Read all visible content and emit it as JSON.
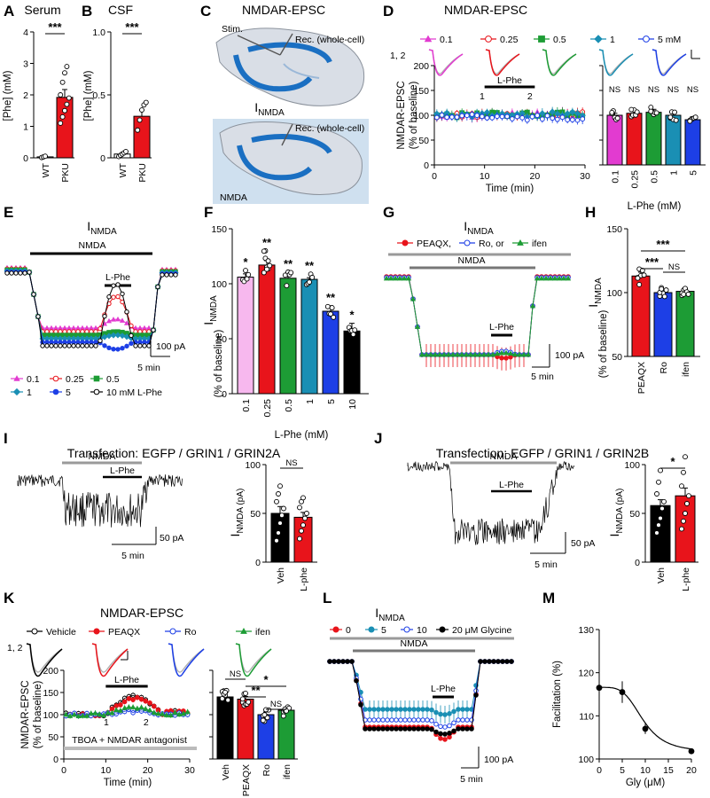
{
  "colors": {
    "pink": "#e23bd0",
    "red": "#e8141b",
    "green": "#1d9c35",
    "teal": "#1a8fb4",
    "blue": "#1d3fe6",
    "black": "#000000",
    "gray": "#9a9a9a",
    "light_blue": "#cfe0ef",
    "tissue": "#d9dee6"
  },
  "panels": {
    "A": {
      "letter": "A",
      "title": "Serum"
    },
    "B": {
      "letter": "B",
      "title": "CSF"
    },
    "C": {
      "letter": "C",
      "title": "NMDAR-EPSC",
      "stim": "Stim.",
      "rec1": "Rec. (whole-cell)",
      "inmda_main": "I",
      "inmda_sub": "NMDA",
      "rec2": "Rec. (whole-cell)",
      "nmda_label": "NMDA"
    },
    "D": {
      "letter": "D",
      "title": "NMDAR-EPSC",
      "trace_index": "1, 2",
      "idx1": "1",
      "idx2": "2",
      "bar_label": "L-Phe"
    },
    "E": {
      "letter": "E",
      "title_main": "I",
      "title_sub": "NMDA",
      "nmda_label": "NMDA",
      "lphe_label": "L-Phe",
      "scale_y": "100 pA",
      "scale_x": "5 min"
    },
    "F": {
      "letter": "F"
    },
    "G": {
      "letter": "G",
      "title_main": "I",
      "title_sub": "NMDA",
      "nmda_label": "NMDA",
      "lphe_label": "L-Phe",
      "scale_y": "100 pA",
      "scale_x": "5 min"
    },
    "H": {
      "letter": "H"
    },
    "I": {
      "letter": "I",
      "title": "Transfection: EGFP / GRIN1 / GRIN2A",
      "nmda_label": "NMDA",
      "lphe_label": "L-Phe",
      "scale_y": "50 pA",
      "scale_x": "5 min"
    },
    "J": {
      "letter": "J",
      "title": "Transfection: EGFP / GRIN1 / GRIN2B",
      "nmda_label": "NMDA",
      "lphe_label": "L-Phe",
      "scale_y": "50 pA",
      "scale_x": "5 min"
    },
    "K": {
      "letter": "K",
      "title": "NMDAR-EPSC",
      "trace_index": "1, 2",
      "idx1": "1",
      "idx2": "2",
      "bar_label": "L-Phe",
      "footer": "TBOA + NMDAR antagonist"
    },
    "L": {
      "letter": "L",
      "title_main": "I",
      "title_sub": "NMDA",
      "nmda_label": "NMDA",
      "lphe_label": "L-Phe",
      "scale_y": "100 pA",
      "scale_x": "5 min"
    },
    "M": {
      "letter": "M"
    }
  },
  "legends": {
    "D": [
      "0.1",
      "0.25",
      "0.5",
      "1",
      "5 mM"
    ],
    "E": [
      "0.1",
      "0.25",
      "0.5",
      "1",
      "5",
      "10 mM L-Phe"
    ],
    "G": [
      "PEAQX,",
      "Ro, or",
      "ifen"
    ],
    "K": [
      "Vehicle",
      "PEAQX",
      "Ro",
      "ifen"
    ],
    "L": [
      "0",
      "5",
      "10",
      "20 μM Glycine"
    ]
  },
  "chart_data": [
    {
      "panel": "A",
      "type": "bar",
      "title": "Serum",
      "ylabel": "[Phe] (mM)",
      "ylim": [
        0,
        4
      ],
      "yticks": [
        "0",
        "1",
        "2",
        "3",
        "4"
      ],
      "categories": [
        "WT",
        "PKU"
      ],
      "values": [
        0.03,
        1.92
      ],
      "errors": [
        0.01,
        0.25
      ],
      "points": [
        [
          0.01,
          0.03,
          0.05
        ],
        [
          1.1,
          1.3,
          1.5,
          1.7,
          1.9,
          2.0,
          2.4,
          2.7,
          2.9
        ]
      ],
      "significance": "***"
    },
    {
      "panel": "B",
      "type": "bar",
      "title": "CSF",
      "ylabel": "[Phe] (mM)",
      "ylim": [
        0,
        1.0
      ],
      "yticks": [
        "0",
        "0.5",
        "1.0"
      ],
      "categories": [
        "WT",
        "PKU"
      ],
      "values": [
        0.03,
        0.33
      ],
      "errors": [
        0.01,
        0.05
      ],
      "points": [
        [
          0.01,
          0.02,
          0.03,
          0.04,
          0.05
        ],
        [
          0.22,
          0.3,
          0.38,
          0.42,
          0.44
        ]
      ],
      "significance": "***"
    },
    {
      "panel": "D-time",
      "type": "line",
      "ylabel": "NMDAR-EPSC (% of baseline)",
      "xlabel": "Time (min)",
      "xlim": [
        0,
        30
      ],
      "ylim": [
        0,
        200
      ],
      "xticks": [
        "0",
        "10",
        "20",
        "30"
      ],
      "yticks": [
        "0",
        "50",
        "100",
        "150",
        "200"
      ],
      "series": [
        "0.1",
        "0.25",
        "0.5",
        "1",
        "5 mM"
      ],
      "baseline": 100
    },
    {
      "panel": "D-bar",
      "type": "bar",
      "xlabel": "L-Phe (mM)",
      "ylim": [
        0,
        200
      ],
      "categories": [
        "0.1",
        "0.25",
        "0.5",
        "1",
        "5"
      ],
      "values": [
        100,
        104,
        106,
        100,
        91
      ],
      "errors": [
        4,
        5,
        6,
        5,
        6
      ],
      "significance": [
        "NS",
        "NS",
        "NS",
        "NS",
        "NS"
      ]
    },
    {
      "panel": "F",
      "type": "bar",
      "ylabel": "I_NMDA (% of baseline)",
      "xlabel": "L-Phe (mM)",
      "ylim": [
        0,
        150
      ],
      "yticks": [
        "0",
        "50",
        "100",
        "150"
      ],
      "categories": [
        "0.1",
        "0.25",
        "0.5",
        "1",
        "5",
        "10"
      ],
      "values": [
        106,
        117,
        105,
        104,
        75,
        57
      ],
      "errors": [
        3,
        4,
        1.5,
        1.5,
        5,
        7
      ],
      "significance": [
        "*",
        "**",
        "**",
        "**",
        "**",
        "*"
      ]
    },
    {
      "panel": "H",
      "type": "bar",
      "ylabel": "I_NMDA (% of baseline)",
      "ylim": [
        50,
        150
      ],
      "yticks": [
        "50",
        "100",
        "150"
      ],
      "categories": [
        "PEAQX",
        "Ro",
        "ifen"
      ],
      "values": [
        113,
        100,
        101
      ],
      "errors": [
        3,
        1.5,
        2
      ],
      "significance": [
        "***",
        "***",
        "NS"
      ]
    },
    {
      "panel": "I-bar",
      "type": "bar",
      "ylabel": "I_NMDA (pA)",
      "ylim": [
        0,
        100
      ],
      "yticks": [
        "0",
        "50",
        "100"
      ],
      "categories": [
        "Veh",
        "L-phe"
      ],
      "values": [
        50,
        46
      ],
      "errors": [
        7,
        5
      ],
      "significance": "NS"
    },
    {
      "panel": "J-bar",
      "type": "bar",
      "ylabel": "I_NMDA (pA)",
      "ylim": [
        0,
        100
      ],
      "yticks": [
        "0",
        "50",
        "100"
      ],
      "categories": [
        "Veh",
        "L-phe"
      ],
      "values": [
        58,
        68
      ],
      "errors": [
        6,
        8
      ],
      "significance": "*"
    },
    {
      "panel": "K-time",
      "type": "line",
      "ylabel": "NMDAR-EPSC (% of baseline)",
      "xlabel": "Time (min)",
      "xlim": [
        0,
        30
      ],
      "ylim": [
        0,
        200
      ],
      "xticks": [
        "0",
        "10",
        "20",
        "30"
      ],
      "yticks": [
        "0",
        "50",
        "100",
        "150",
        "200"
      ],
      "series": [
        "Vehicle",
        "PEAQX",
        "Ro",
        "ifen"
      ]
    },
    {
      "panel": "K-bar",
      "type": "bar",
      "ylim": [
        0,
        200
      ],
      "categories": [
        "Veh",
        "PEAQX",
        "Ro",
        "ifen"
      ],
      "values": [
        140,
        135,
        100,
        110
      ],
      "errors": [
        8,
        6,
        6,
        6
      ],
      "significance": [
        "NS",
        "**",
        "*",
        "NS"
      ]
    },
    {
      "panel": "M",
      "type": "line",
      "ylabel": "Facilitation (%)",
      "xlabel": "Gly (μM)",
      "xlim": [
        0,
        20
      ],
      "ylim": [
        100,
        130
      ],
      "xticks": [
        "0",
        "5",
        "10",
        "15",
        "20"
      ],
      "yticks": [
        "100",
        "110",
        "120",
        "130"
      ],
      "x": [
        0,
        5,
        10,
        20
      ],
      "y": [
        116.5,
        115.5,
        107,
        101.8
      ],
      "errors": [
        3.5,
        2.5,
        1.2,
        0.3
      ]
    }
  ]
}
